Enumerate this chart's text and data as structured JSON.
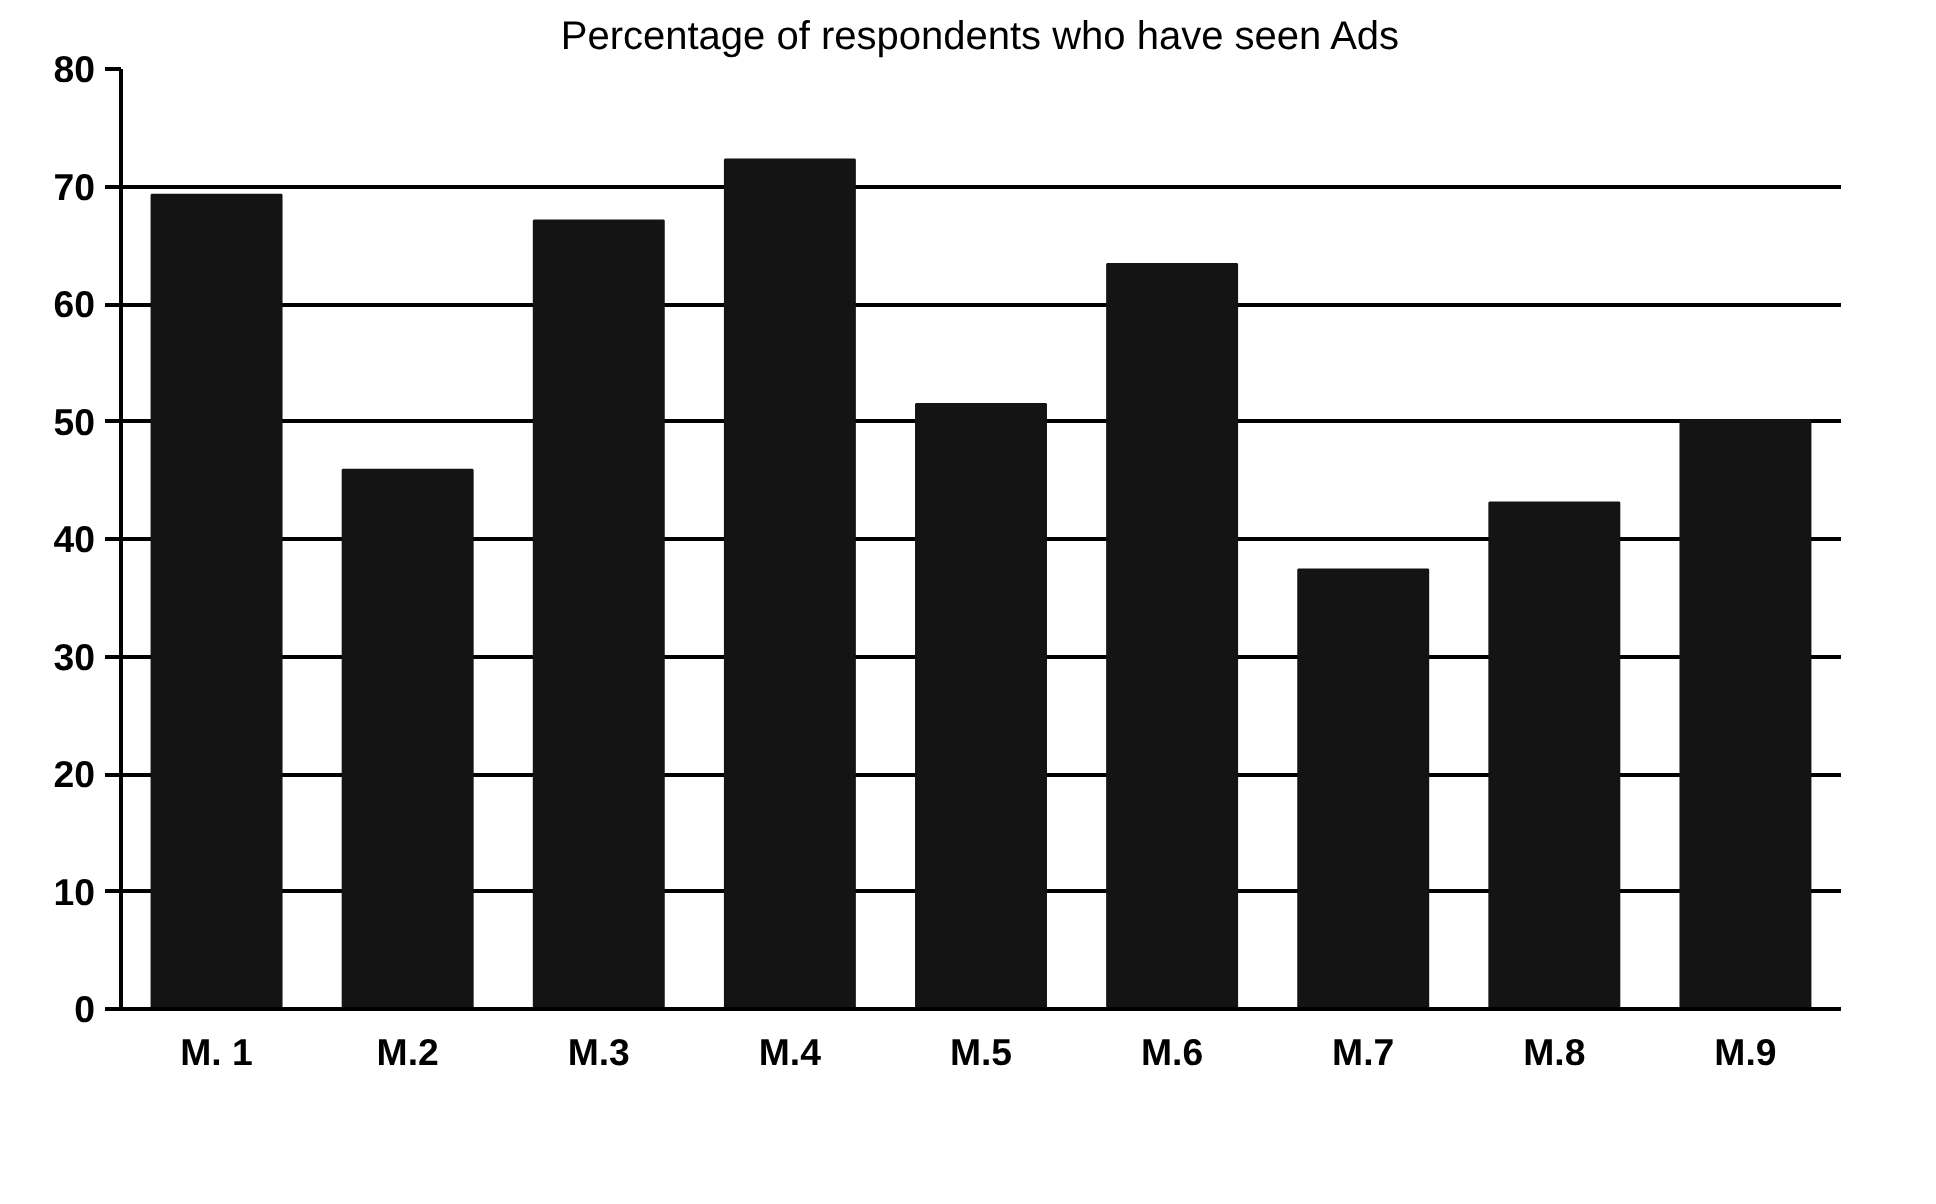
{
  "chart_data": {
    "type": "bar",
    "title": "Percentage of respondents who have seen Ads",
    "categories": [
      "M. 1",
      "M.2",
      "M.3",
      "M.4",
      "M.5",
      "M.6",
      "M.7",
      "M.8",
      "M.9"
    ],
    "values": [
      69.3,
      45.9,
      67.1,
      72.3,
      51.5,
      63.4,
      37.4,
      43.1,
      50.1
    ],
    "color": "#141414",
    "ylim": [
      0,
      80
    ],
    "yticks": [
      0,
      10,
      20,
      30,
      40,
      50,
      60,
      70,
      80
    ],
    "grid": "y"
  }
}
